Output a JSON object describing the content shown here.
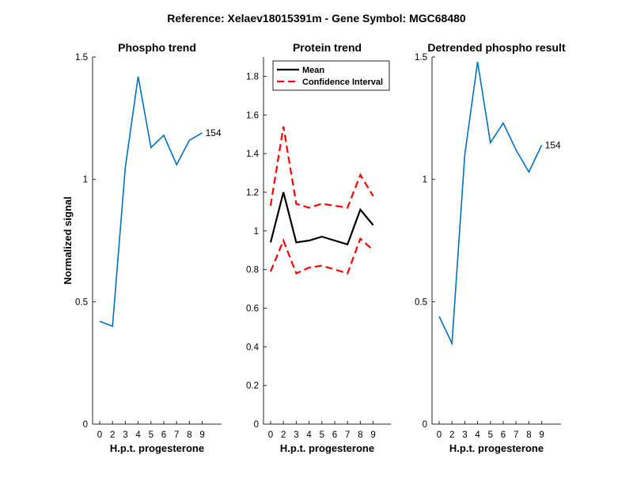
{
  "figure": {
    "suptitle": "Reference:  Xelaev18015391m - Gene Symbol:  MGC68480"
  },
  "chart_data": [
    {
      "type": "line",
      "title": "Phospho trend",
      "xlabel": "H.p.t. progesterone",
      "ylabel": "Normalized signal",
      "x_ticks": [
        "0",
        "2",
        "3",
        "4",
        "5",
        "6",
        "7",
        "8",
        "9"
      ],
      "y_ticks": [
        "0",
        "0.5",
        "1",
        "1.5"
      ],
      "ylim": [
        0,
        1.5
      ],
      "grid": false,
      "series": [
        {
          "values": [
            0.42,
            0.4,
            1.05,
            1.42,
            1.13,
            1.18,
            1.06,
            1.16,
            1.19
          ],
          "color": "#0072BD",
          "end_label": "154"
        }
      ]
    },
    {
      "type": "line",
      "title": "Protein trend",
      "xlabel": "H.p.t. progesterone",
      "ylabel": "",
      "x_ticks": [
        "0",
        "2",
        "3",
        "4",
        "5",
        "6",
        "7",
        "8",
        "9"
      ],
      "y_ticks": [
        "0",
        "0.2",
        "0.4",
        "0.6",
        "0.8",
        "1",
        "1.2",
        "1.4",
        "1.6",
        "1.8"
      ],
      "ylim": [
        0,
        1.9
      ],
      "grid": false,
      "legend": {
        "placement": "top-left",
        "entries": [
          "Mean",
          "Confidence Interval"
        ]
      },
      "series": [
        {
          "name": "Mean",
          "values": [
            0.94,
            1.2,
            0.94,
            0.95,
            0.97,
            0.95,
            0.93,
            1.11,
            1.03
          ],
          "color": "#000000",
          "style": "solid"
        },
        {
          "name": "Confidence Interval",
          "values": [
            1.13,
            1.54,
            1.14,
            1.12,
            1.14,
            1.13,
            1.12,
            1.29,
            1.18
          ],
          "color": "#FF0000",
          "style": "dashed"
        },
        {
          "name": "Confidence Interval",
          "values": [
            0.79,
            0.95,
            0.78,
            0.81,
            0.82,
            0.8,
            0.78,
            0.96,
            0.9
          ],
          "color": "#FF0000",
          "style": "dashed"
        }
      ]
    },
    {
      "type": "line",
      "title": "Detrended phospho result",
      "xlabel": "H.p.t. progesterone",
      "ylabel": "",
      "x_ticks": [
        "0",
        "2",
        "3",
        "4",
        "5",
        "6",
        "7",
        "8",
        "9"
      ],
      "y_ticks": [
        "0",
        "0.5",
        "1",
        "1.5"
      ],
      "ylim": [
        0,
        1.5
      ],
      "grid": false,
      "series": [
        {
          "values": [
            0.44,
            0.33,
            1.1,
            1.48,
            1.15,
            1.23,
            1.12,
            1.03,
            1.14
          ],
          "color": "#0072BD",
          "end_label": "154"
        }
      ]
    }
  ]
}
